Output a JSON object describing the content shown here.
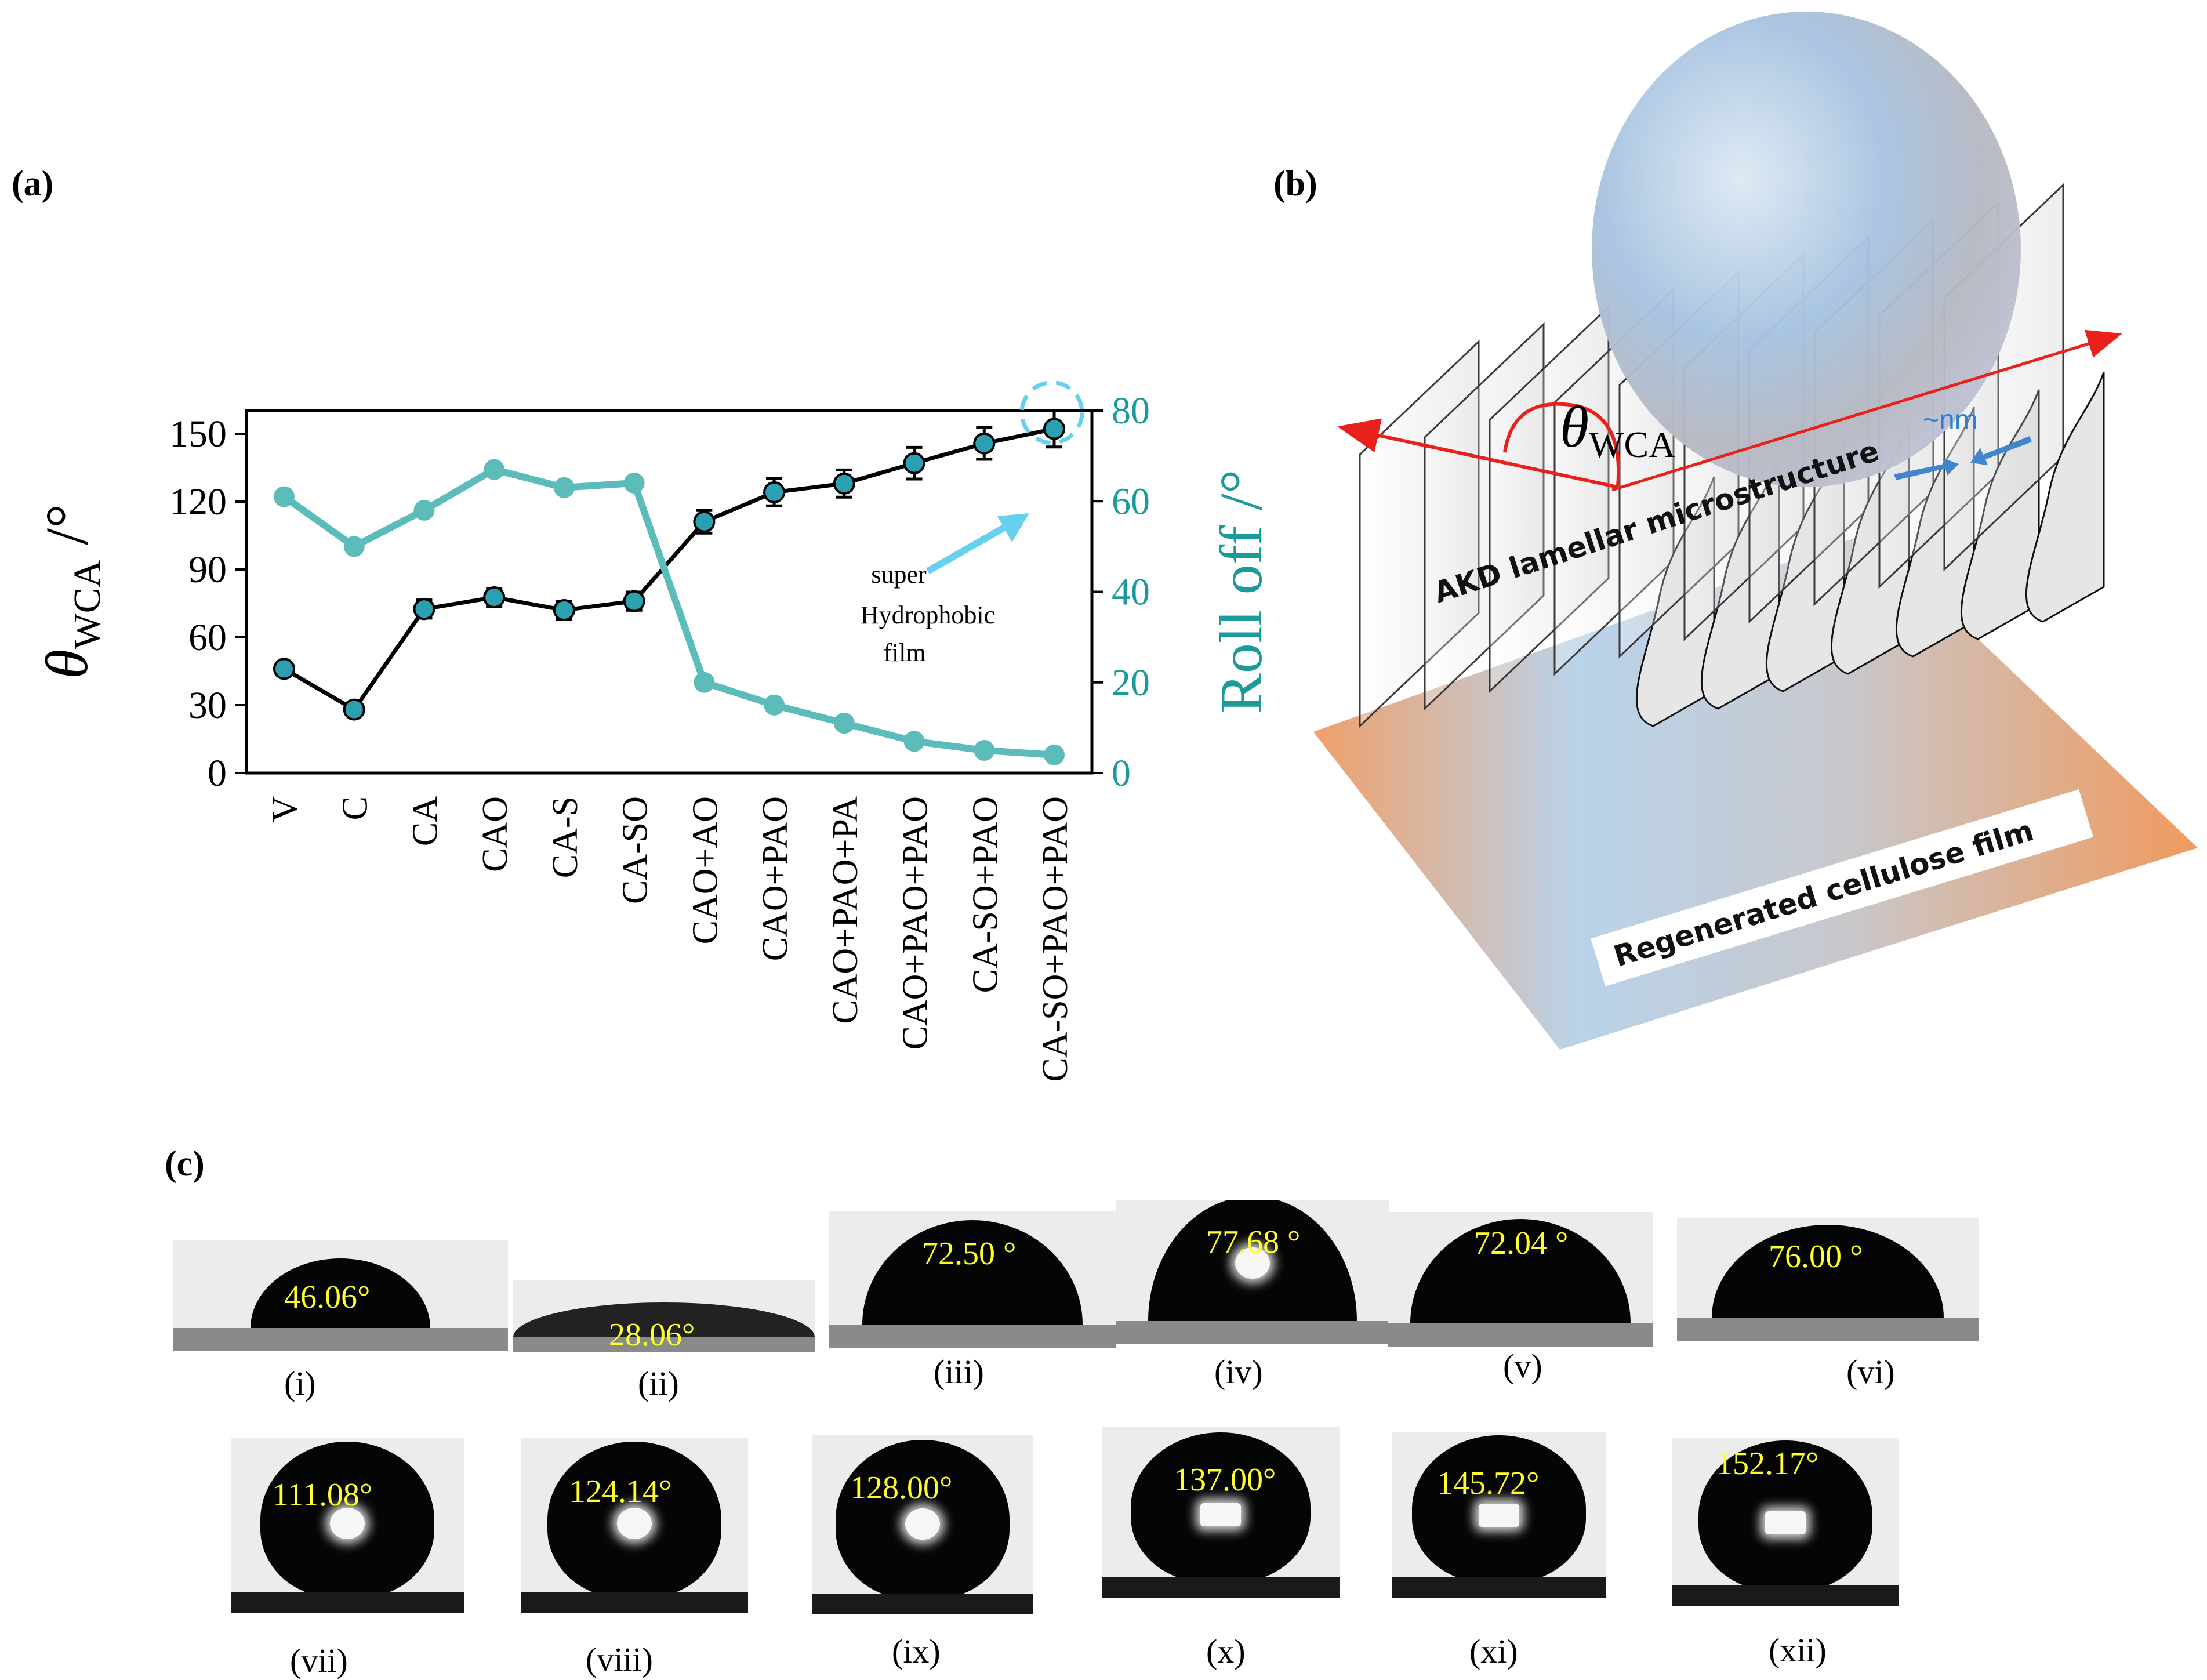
{
  "panels": {
    "a": "(a)",
    "b": "(b)",
    "c": "(c)"
  },
  "chart_data": {
    "type": "line",
    "categories": [
      "V",
      "C",
      "CA",
      "CAO",
      "CA-S",
      "CA-SO",
      "CAO+AO",
      "CAO+PAO",
      "CAO+PAO+PA",
      "CAO+PAO+PAO",
      "CA-SO+PAO",
      "CA-SO+PAO+PAO"
    ],
    "series": [
      {
        "name": "θWCA",
        "axis": "left",
        "color": "#000000",
        "marker_color": "#2aa0b0",
        "values": [
          46.06,
          28.06,
          72.5,
          77.68,
          72.04,
          76.0,
          111.08,
          124.14,
          128.0,
          137.0,
          145.72,
          152.17
        ],
        "error": [
          0,
          0,
          4,
          4,
          4,
          4,
          5,
          6,
          6,
          7,
          7,
          8
        ]
      },
      {
        "name": "Roll off",
        "axis": "right",
        "color": "#5bbcba",
        "marker_color": "#5bbcba",
        "values": [
          61,
          50,
          58,
          67,
          63,
          64,
          20,
          15,
          11,
          7,
          5,
          4
        ]
      }
    ],
    "ylabel_left_main": "θ",
    "ylabel_left_sub": "WCA",
    "ylabel_left_unit": " /°",
    "ylabel_right": "Roll off /°",
    "ylim_left": [
      0,
      150
    ],
    "yticks_left": [
      0,
      30,
      60,
      90,
      120,
      150
    ],
    "ylim_right": [
      0,
      80
    ],
    "yticks_right": [
      0,
      20,
      40,
      60,
      80
    ],
    "right_axis_color": "#1a9a99",
    "annotation": [
      "super",
      "Hydrophobic",
      "film"
    ],
    "annotation_color": "#66d0ef",
    "grid": false,
    "legend": "none"
  },
  "schematic": {
    "theta_main": "θ",
    "theta_sub": "WCA",
    "nm_label": "~nm",
    "lamellar_label": "AKD lamellar microstructure",
    "film_label": "Regenerated cellulose film",
    "tangent_color": "#e8211c",
    "nm_color": "#2e7fd0"
  },
  "photos": [
    {
      "numeral": "(i)",
      "angle": "46.06°"
    },
    {
      "numeral": "(ii)",
      "angle": "28.06°"
    },
    {
      "numeral": "(iii)",
      "angle": "72.50 °"
    },
    {
      "numeral": "(iv)",
      "angle": "77.68 °"
    },
    {
      "numeral": "(v)",
      "angle": "72.04 °"
    },
    {
      "numeral": "(vi)",
      "angle": "76.00 °"
    },
    {
      "numeral": "(vii)",
      "angle": "111.08°"
    },
    {
      "numeral": "(viii)",
      "angle": "124.14°"
    },
    {
      "numeral": "(ix)",
      "angle": "128.00°"
    },
    {
      "numeral": "(x)",
      "angle": "137.00°"
    },
    {
      "numeral": "(xi)",
      "angle": "145.72°"
    },
    {
      "numeral": "(xii)",
      "angle": "152.17°"
    }
  ]
}
